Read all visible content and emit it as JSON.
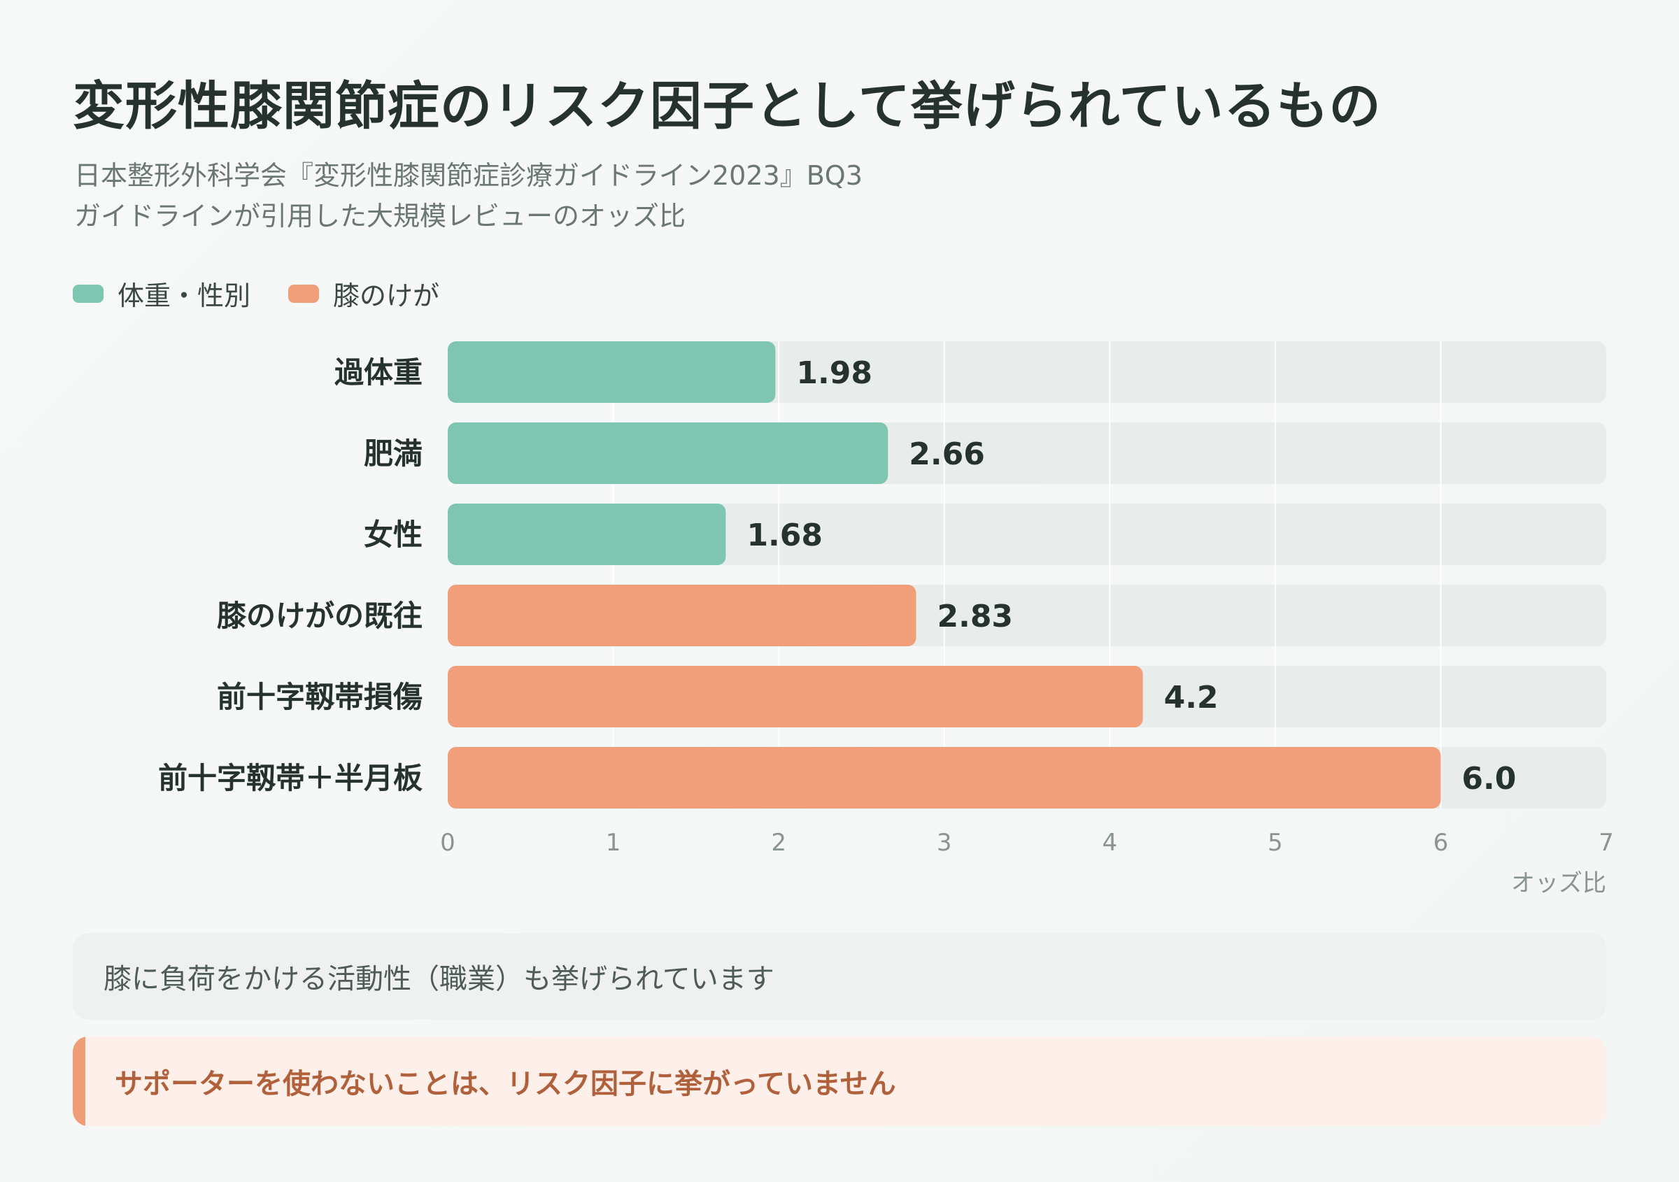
{
  "title": "変形性膝関節症のリスク因子として挙げられているもの",
  "subtitle": {
    "line1": "日本整形外科学会『変形性膝関節症診療ガイドライン2023』BQ3",
    "line2": "ガイドラインが引用した大規模レビューのオッズ比"
  },
  "legend": [
    {
      "label": "体重・性別",
      "color": "#7fc6b2"
    },
    {
      "label": "膝のけが",
      "color": "#f19f7b"
    }
  ],
  "note": "膝に負荷をかける活動性（職業）も挙げられています",
  "alert": "サポーターを使わないことは、リスク因子に挙がっていません",
  "chart_data": {
    "type": "bar",
    "orientation": "horizontal",
    "categories": [
      "過体重",
      "肥満",
      "女性",
      "膝のけがの既往",
      "前十字靱帯損傷",
      "前十字靱帯＋半月板"
    ],
    "values": [
      1.98,
      2.66,
      1.68,
      2.83,
      4.2,
      6.0
    ],
    "value_labels": [
      "1.98",
      "2.66",
      "1.68",
      "2.83",
      "4.2",
      "6.0"
    ],
    "groups": [
      "体重・性別",
      "体重・性別",
      "体重・性別",
      "膝のけが",
      "膝のけが",
      "膝のけが"
    ],
    "colors": {
      "体重・性別": "#7fc6b2",
      "膝のけが": "#f19f7b"
    },
    "xlim": [
      0,
      7
    ],
    "xticks": [
      0,
      1,
      2,
      3,
      4,
      5,
      6,
      7
    ],
    "xlabel": "オッズ比",
    "grid": true
  }
}
